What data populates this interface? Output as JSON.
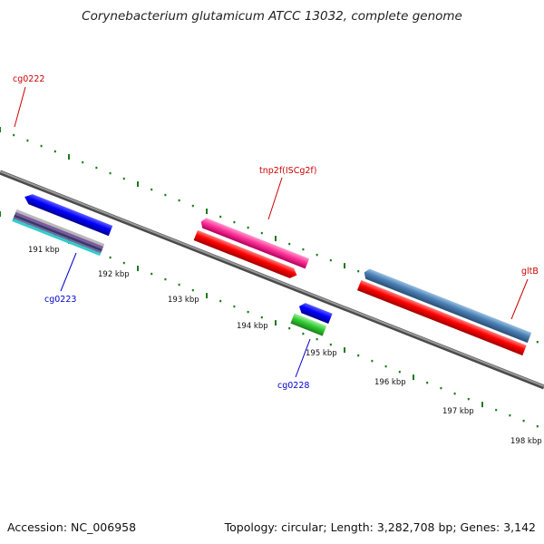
{
  "title": "Corynebacterium glutamicum ATCC 13032, complete genome",
  "footer": {
    "accession": "Accession: NC_006958",
    "summary": "Topology: circular; Length: 3,282,708 bp; Genes: 3,142"
  },
  "ticks": [
    {
      "label": "191 kbp"
    },
    {
      "label": "192 kbp"
    },
    {
      "label": "193 kbp"
    },
    {
      "label": "194 kbp"
    },
    {
      "label": "195 kbp"
    },
    {
      "label": "196 kbp"
    },
    {
      "label": "197 kbp"
    },
    {
      "label": "198 kbp"
    }
  ],
  "gene_labels": {
    "cg0222": "cg0222",
    "cg0223": "cg0223",
    "tnp2f": "tnp2f(ISCg2f)",
    "cg0228": "cg0228",
    "gltB": "gltB"
  },
  "colors": {
    "backbone": "#7a7a7a",
    "tick_mark": "#1a7a1a",
    "forward_cds": "#ff0000",
    "reverse_cds": "#0000ff",
    "insertion": "#ff3399",
    "steelblue": "#4a7fb5",
    "green": "#33cc33",
    "cyan": "#33cccc",
    "purple": "#7a5aa0",
    "label_red": "#cc0000",
    "label_blue": "#0000cc"
  }
}
